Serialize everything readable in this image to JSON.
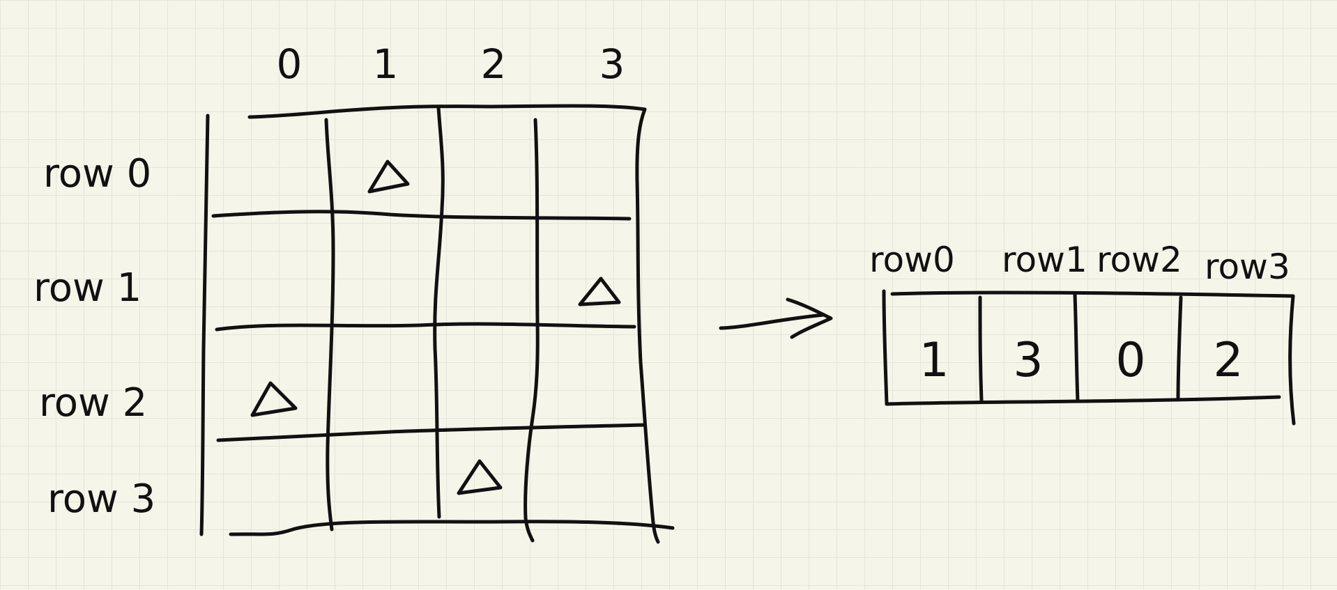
{
  "grid": {
    "column_labels": [
      "0",
      "1",
      "2",
      "3"
    ],
    "row_labels": [
      "row 0",
      "row 1",
      "row 2",
      "row 3"
    ],
    "marker_symbol": "triangle",
    "markers": [
      {
        "row": 0,
        "col": 1
      },
      {
        "row": 1,
        "col": 3
      },
      {
        "row": 2,
        "col": 0
      },
      {
        "row": 3,
        "col": 2
      }
    ]
  },
  "array": {
    "headers": [
      "row0",
      "row1",
      "row2",
      "row3"
    ],
    "values": [
      "1",
      "3",
      "0",
      "2"
    ]
  },
  "arrow": "right-arrow-icon"
}
